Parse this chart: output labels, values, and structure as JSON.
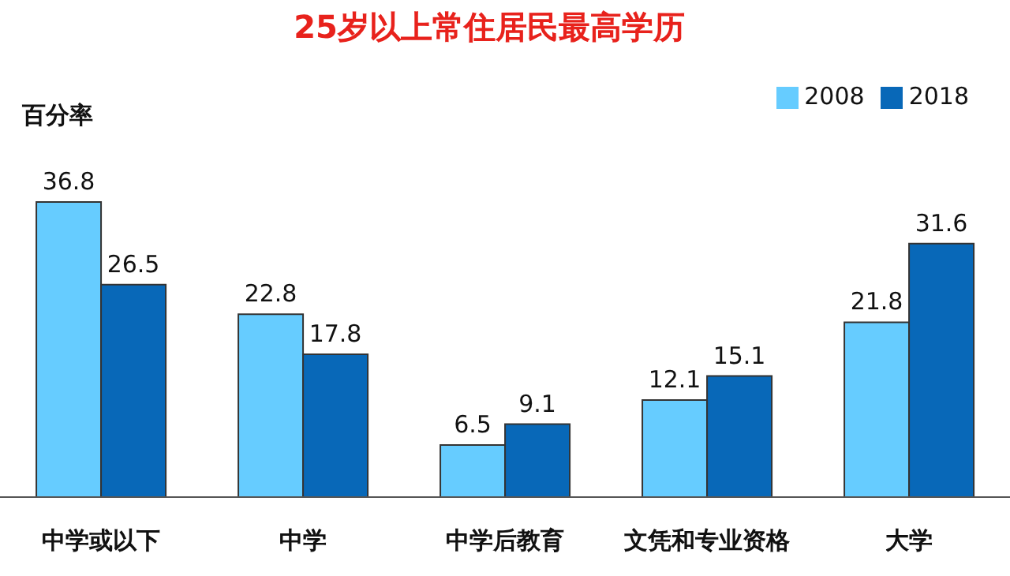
{
  "chart_data": {
    "type": "bar",
    "title": "25岁以上常住居民最高学历",
    "ylabel": "百分率",
    "categories": [
      "中学或以下",
      "中学",
      "中学后教育",
      "文凭和专业资格",
      "大学"
    ],
    "series": [
      {
        "name": "2008",
        "color": "#66ccff",
        "values": [
          36.8,
          22.8,
          6.5,
          12.1,
          21.8
        ]
      },
      {
        "name": "2018",
        "color": "#0868b8",
        "values": [
          26.5,
          17.8,
          9.1,
          15.1,
          31.6
        ]
      }
    ],
    "data_labels": true,
    "legend": "top right",
    "grid": false
  }
}
